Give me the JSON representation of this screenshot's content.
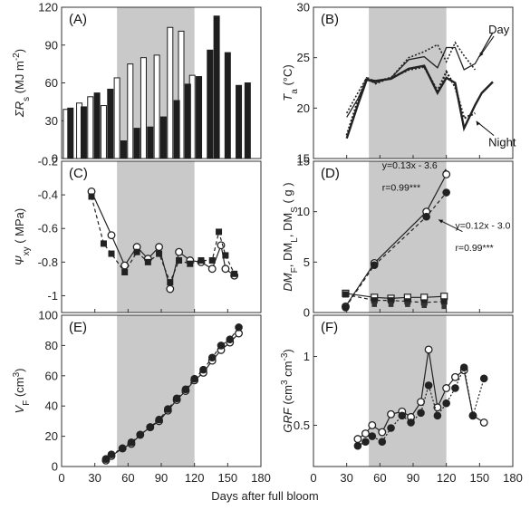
{
  "figure": {
    "x_axis_title": "Days after full bloom"
  },
  "chart_data": [
    {
      "id": "A",
      "panel_label": "(A)",
      "type": "bar",
      "shade": [
        50,
        120
      ],
      "xlim": [
        0,
        180
      ],
      "ylim": [
        0,
        120
      ],
      "yticks": [
        0,
        30,
        60,
        90,
        120
      ],
      "ylabel_parts": [
        "ΣR",
        "s",
        " (MJ m",
        "-2",
        ")"
      ],
      "series": [
        {
          "style": "open",
          "points": [
            [
              4,
              39
            ],
            [
              16,
              44
            ],
            [
              26,
              49
            ],
            [
              38,
              42
            ],
            [
              50,
              64
            ],
            [
              62,
              75
            ],
            [
              74,
              80
            ],
            [
              86,
              82
            ],
            [
              98,
              104
            ],
            [
              108,
              101
            ],
            [
              118,
              66
            ]
          ]
        },
        {
          "style": "filled",
          "points": [
            [
              8,
              40
            ],
            [
              20,
              41
            ],
            [
              32,
              52
            ],
            [
              44,
              55
            ],
            [
              56,
              14
            ],
            [
              68,
              24
            ],
            [
              80,
              25
            ],
            [
              92,
              33
            ],
            [
              104,
              46
            ],
            [
              114,
              59
            ],
            [
              124,
              65
            ],
            [
              134,
              86
            ],
            [
              140,
              113
            ],
            [
              150,
              84
            ],
            [
              160,
              58
            ],
            [
              168,
              60
            ]
          ]
        }
      ]
    },
    {
      "id": "B",
      "panel_label": "(B)",
      "type": "line",
      "shade": [
        50,
        120
      ],
      "xlim": [
        0,
        180
      ],
      "ylim": [
        15,
        30
      ],
      "yticks": [
        15,
        20,
        25,
        30
      ],
      "ylabel_parts": [
        "T",
        "a",
        " (°C)"
      ],
      "annotations": [
        {
          "text": "Day",
          "x": 158,
          "y": 27.4,
          "arrow_to": [
            150,
            25.1
          ]
        },
        {
          "text": "Night",
          "x": 158,
          "y": 16.2,
          "arrow_to": [
            147,
            18.7
          ]
        }
      ],
      "series": [
        {
          "style": "solid-thin",
          "points": [
            [
              30,
              19.1
            ],
            [
              40,
              20.9
            ],
            [
              48,
              22.8
            ],
            [
              56,
              22.5
            ],
            [
              70,
              23.0
            ],
            [
              86,
              24.8
            ],
            [
              100,
              25.1
            ],
            [
              112,
              24.0
            ],
            [
              120,
              26.0
            ],
            [
              128,
              26.0
            ],
            [
              136,
              23.8
            ],
            [
              146,
              24.4
            ],
            [
              162,
              27.5
            ]
          ]
        },
        {
          "style": "dotted-thin",
          "points": [
            [
              30,
              19.5
            ],
            [
              40,
              21.5
            ],
            [
              48,
              23.0
            ],
            [
              56,
              22.4
            ],
            [
              70,
              23.0
            ],
            [
              86,
              25.0
            ],
            [
              100,
              25.6
            ],
            [
              112,
              26.3
            ],
            [
              120,
              24.6
            ],
            [
              128,
              26.5
            ],
            [
              136,
              25.2
            ],
            [
              146,
              23.8
            ]
          ]
        },
        {
          "style": "solid-thick",
          "points": [
            [
              30,
              17.0
            ],
            [
              40,
              20.3
            ],
            [
              48,
              22.8
            ],
            [
              56,
              22.7
            ],
            [
              70,
              22.9
            ],
            [
              86,
              23.9
            ],
            [
              100,
              24.2
            ],
            [
              112,
              21.5
            ],
            [
              120,
              23.0
            ],
            [
              128,
              22.5
            ],
            [
              136,
              18.0
            ],
            [
              146,
              20.3
            ],
            [
              152,
              21.5
            ],
            [
              162,
              22.6
            ]
          ]
        },
        {
          "style": "dotted-thick",
          "points": [
            [
              30,
              17.3
            ],
            [
              40,
              20.7
            ],
            [
              48,
              23.0
            ],
            [
              56,
              22.6
            ],
            [
              70,
              23.0
            ],
            [
              86,
              23.8
            ],
            [
              100,
              24.1
            ],
            [
              112,
              21.7
            ],
            [
              120,
              23.6
            ],
            [
              128,
              22.1
            ],
            [
              136,
              19.0
            ],
            [
              146,
              19.5
            ]
          ]
        }
      ]
    },
    {
      "id": "C",
      "panel_label": "(C)",
      "type": "scatter",
      "shade": [
        50,
        120
      ],
      "xlim": [
        0,
        180
      ],
      "ylim": [
        -1.1,
        -0.2
      ],
      "yticks": [
        -1.0,
        -0.8,
        -0.6,
        -0.4,
        -0.2
      ],
      "ytick_labels": [
        "-1",
        "-0.8",
        "-0.6",
        "-0.4",
        "-0.2"
      ],
      "ylabel_parts": [
        "Ψ",
        "xy",
        " ( MPa)"
      ],
      "series": [
        {
          "marker": "open-circle",
          "line": "solid",
          "points": [
            [
              27,
              -0.38
            ],
            [
              45,
              -0.64
            ],
            [
              57,
              -0.82
            ],
            [
              68,
              -0.71
            ],
            [
              78,
              -0.78
            ],
            [
              88,
              -0.71
            ],
            [
              98,
              -0.96
            ],
            [
              106,
              -0.74
            ],
            [
              116,
              -0.79
            ],
            [
              126,
              -0.8
            ],
            [
              136,
              -0.84
            ],
            [
              144,
              -0.7
            ],
            [
              148,
              -0.84
            ],
            [
              156,
              -0.88
            ]
          ]
        },
        {
          "marker": "filled-square",
          "line": "dashed",
          "points": [
            [
              27,
              -0.41
            ],
            [
              38,
              -0.69
            ],
            [
              45,
              -0.75
            ],
            [
              57,
              -0.86
            ],
            [
              68,
              -0.74
            ],
            [
              78,
              -0.8
            ],
            [
              88,
              -0.75
            ],
            [
              98,
              -0.92
            ],
            [
              106,
              -0.79
            ],
            [
              116,
              -0.81
            ],
            [
              126,
              -0.79
            ],
            [
              136,
              -0.79
            ],
            [
              142,
              -0.62
            ],
            [
              148,
              -0.76
            ],
            [
              156,
              -0.87
            ]
          ]
        }
      ]
    },
    {
      "id": "D",
      "panel_label": "(D)",
      "type": "scatter",
      "shade": [
        50,
        120
      ],
      "xlim": [
        0,
        180
      ],
      "ylim": [
        0,
        15
      ],
      "yticks": [
        0,
        5,
        10,
        15
      ],
      "ylabel_parts": [
        "DM",
        "F",
        ", DM",
        "L",
        ", DM",
        "S",
        " ( g )"
      ],
      "annotations": [
        {
          "text": "y=0.13x - 3.6",
          "x": 62,
          "y": 14.3,
          "arrow_to": [
            117,
            13.9
          ]
        },
        {
          "text": "r=0.99***",
          "x": 62,
          "y": 12.1
        },
        {
          "text": "y=0.12x - 3.0",
          "x": 128,
          "y": 8.3,
          "arrow_to": [
            113,
            9.2
          ]
        },
        {
          "text": "r=0.99***",
          "x": 128,
          "y": 6.1
        }
      ],
      "series": [
        {
          "marker": "open-circle",
          "line": "solid",
          "points": [
            [
              29,
              0.6
            ],
            [
              55,
              4.9
            ],
            [
              102,
              10.0
            ],
            [
              120,
              13.7
            ]
          ]
        },
        {
          "marker": "filled-circle",
          "line": "dashed",
          "points": [
            [
              29,
              0.5
            ],
            [
              55,
              4.7
            ],
            [
              102,
              9.5
            ],
            [
              120,
              11.9
            ]
          ]
        },
        {
          "marker": "open-square",
          "line": "solid",
          "points": [
            [
              29,
              1.9
            ],
            [
              55,
              1.5
            ],
            [
              70,
              1.4
            ],
            [
              85,
              1.5
            ],
            [
              100,
              1.5
            ],
            [
              118,
              1.6
            ]
          ]
        },
        {
          "marker": "filled-square",
          "line": "dashed",
          "points": [
            [
              29,
              1.8
            ],
            [
              55,
              1.2
            ],
            [
              70,
              1.2
            ],
            [
              85,
              1.1
            ],
            [
              100,
              1.0
            ],
            [
              118,
              1.1
            ]
          ]
        },
        {
          "marker": "filled-square-small",
          "line": "none",
          "points": [
            [
              55,
              0.8
            ],
            [
              70,
              0.8
            ],
            [
              85,
              0.8
            ],
            [
              100,
              0.7
            ],
            [
              118,
              0.6
            ]
          ]
        }
      ]
    },
    {
      "id": "E",
      "panel_label": "(E)",
      "type": "scatter",
      "shade": [
        50,
        120
      ],
      "xlim": [
        0,
        180
      ],
      "ylim": [
        0,
        100
      ],
      "yticks": [
        0,
        20,
        40,
        60,
        80,
        100
      ],
      "ylabel_parts": [
        "V",
        "F",
        " (cm",
        "3",
        ")"
      ],
      "series": [
        {
          "marker": "open-circle",
          "line": "solid",
          "points": [
            [
              40,
              4
            ],
            [
              45,
              7
            ],
            [
              55,
              12
            ],
            [
              63,
              15
            ],
            [
              71,
              21
            ],
            [
              80,
              26
            ],
            [
              88,
              30
            ],
            [
              96,
              37
            ],
            [
              104,
              44
            ],
            [
              112,
              50
            ],
            [
              120,
              57
            ],
            [
              128,
              62
            ],
            [
              136,
              70
            ],
            [
              144,
              77
            ],
            [
              152,
              82
            ],
            [
              160,
              88
            ]
          ]
        },
        {
          "marker": "filled-circle",
          "line": "dashed",
          "points": [
            [
              40,
              5
            ],
            [
              45,
              8
            ],
            [
              55,
              12
            ],
            [
              63,
              16
            ],
            [
              71,
              21
            ],
            [
              80,
              26
            ],
            [
              88,
              31
            ],
            [
              96,
              38
            ],
            [
              104,
              45
            ],
            [
              112,
              51
            ],
            [
              120,
              58
            ],
            [
              128,
              64
            ],
            [
              136,
              72
            ],
            [
              144,
              80
            ],
            [
              152,
              84
            ],
            [
              160,
              92
            ]
          ]
        }
      ]
    },
    {
      "id": "F",
      "panel_label": "(F)",
      "type": "scatter",
      "shade": [
        50,
        120
      ],
      "xlim": [
        0,
        180
      ],
      "ylim": [
        0.2,
        1.3
      ],
      "yticks": [
        0.5,
        1.0
      ],
      "ytick_labels": [
        "0.5",
        "1"
      ],
      "ylabel_parts": [
        "GRF",
        "",
        " (cm",
        "3",
        " cm",
        "-3",
        ")"
      ],
      "series": [
        {
          "marker": "open-circle",
          "line": "solid",
          "points": [
            [
              40,
              0.4
            ],
            [
              47,
              0.44
            ],
            [
              53,
              0.5
            ],
            [
              62,
              0.45
            ],
            [
              70,
              0.58
            ],
            [
              80,
              0.6
            ],
            [
              88,
              0.56
            ],
            [
              97,
              0.67
            ],
            [
              104,
              1.05
            ],
            [
              112,
              0.63
            ],
            [
              120,
              0.77
            ],
            [
              128,
              0.85
            ],
            [
              136,
              0.9
            ],
            [
              144,
              0.57
            ],
            [
              154,
              0.52
            ]
          ]
        },
        {
          "marker": "filled-circle",
          "line": "dotted",
          "points": [
            [
              40,
              0.35
            ],
            [
              47,
              0.38
            ],
            [
              53,
              0.42
            ],
            [
              62,
              0.38
            ],
            [
              70,
              0.48
            ],
            [
              80,
              0.57
            ],
            [
              88,
              0.52
            ],
            [
              97,
              0.59
            ],
            [
              104,
              0.79
            ],
            [
              112,
              0.57
            ],
            [
              120,
              0.66
            ],
            [
              128,
              0.77
            ],
            [
              136,
              0.92
            ],
            [
              144,
              0.57
            ],
            [
              154,
              0.84
            ]
          ]
        }
      ]
    }
  ],
  "shared_axis": {
    "xticks": [
      0,
      30,
      60,
      90,
      120,
      150,
      180
    ]
  }
}
